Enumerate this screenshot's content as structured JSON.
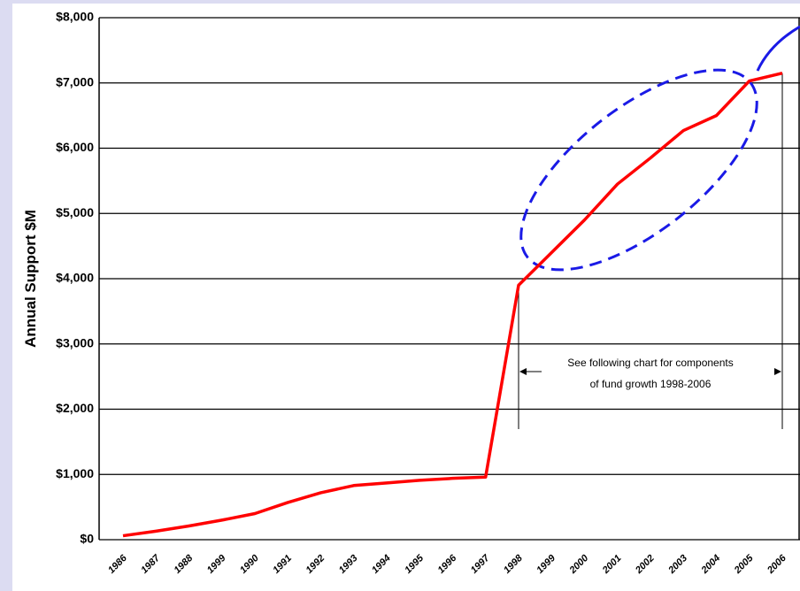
{
  "chart_data": {
    "type": "line",
    "y_label": "Annual Support $M",
    "categories": [
      "1986",
      "1987",
      "1988",
      "1999",
      "1990",
      "1991",
      "1992",
      "1993",
      "1994",
      "1995",
      "1996",
      "1997",
      "1998",
      "1999",
      "2000",
      "2001",
      "2002",
      "2003",
      "2004",
      "2005",
      "2006"
    ],
    "series": [
      {
        "name": "Annual Support",
        "color": "#ff0000",
        "values": [
          60,
          130,
          210,
          300,
          400,
          570,
          720,
          830,
          870,
          910,
          940,
          960,
          3900,
          4400,
          4900,
          5450,
          5850,
          6270,
          6500,
          7030,
          7150
        ]
      }
    ],
    "ylim": [
      0,
      8000
    ],
    "yticks": [
      {
        "value": 0,
        "label": "$0"
      },
      {
        "value": 1000,
        "label": "$1,000"
      },
      {
        "value": 2000,
        "label": "$2,000"
      },
      {
        "value": 3000,
        "label": "$3,000"
      },
      {
        "value": 4000,
        "label": "$4,000"
      },
      {
        "value": 5000,
        "label": "$5,000"
      },
      {
        "value": 6000,
        "label": "$6,000"
      },
      {
        "value": 7000,
        "label": "$7,000"
      },
      {
        "value": 8000,
        "label": "$8,000"
      }
    ],
    "grid": true,
    "annotation": [
      "See following chart for components",
      "of fund growth 1998-2006"
    ]
  }
}
